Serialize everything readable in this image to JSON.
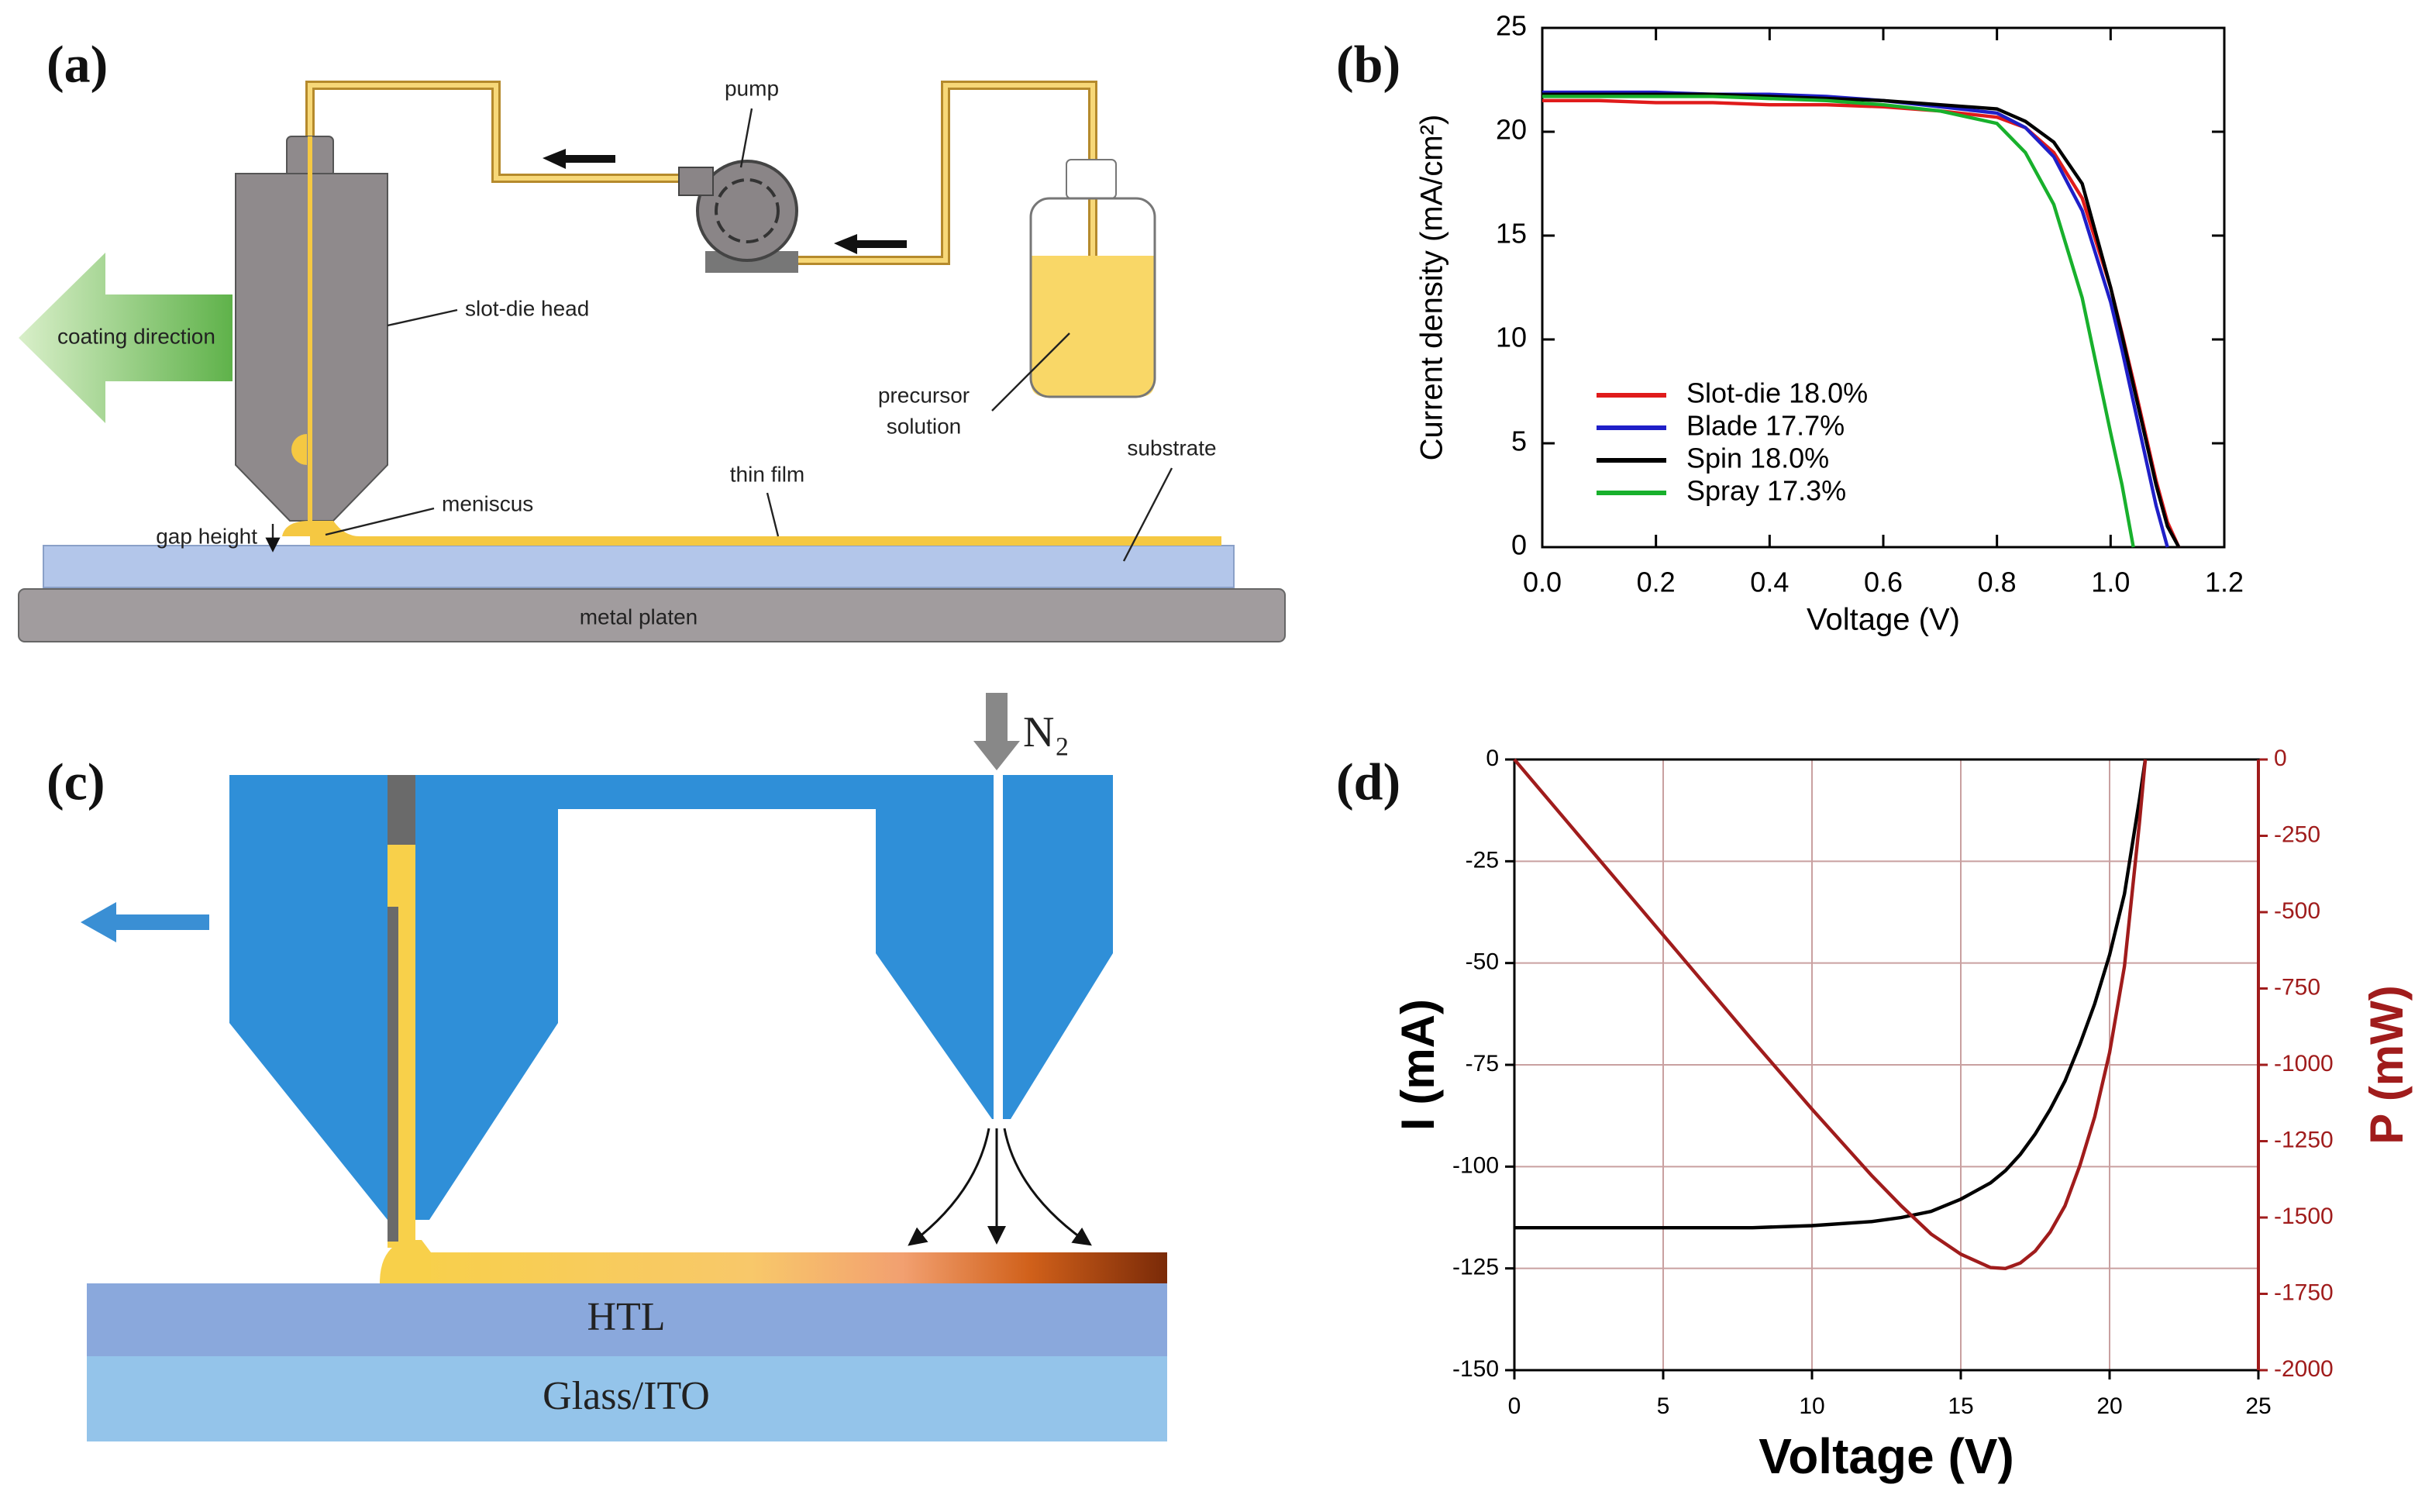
{
  "panels": {
    "a": "(a)",
    "b": "(b)",
    "c": "(c)",
    "d": "(d)"
  },
  "diagram_a": {
    "pump": "pump",
    "slot_die_head": "slot-die head",
    "coating_direction": "coating direction",
    "precursor_solution": [
      "precursor",
      "solution"
    ],
    "meniscus": "meniscus",
    "thin_film": "thin film",
    "substrate": "substrate",
    "gap_height": "gap height",
    "metal_platen": "metal platen"
  },
  "diagram_c": {
    "gas": "N₂",
    "htl": "HTL",
    "glass": "Glass/ITO"
  },
  "chart_data": [
    {
      "type": "line",
      "xlabel": "Voltage (V)",
      "ylabel": "Current density (mA/cm²)",
      "x": [
        0,
        0.1,
        0.2,
        0.3,
        0.4,
        0.5,
        0.6,
        0.7,
        0.8,
        0.85,
        0.9,
        0.95,
        1.0,
        1.02,
        1.04,
        1.06,
        1.08,
        1.1,
        1.12
      ],
      "series": [
        {
          "name": "Slot-die 18.0%",
          "color": "#e01b1b",
          "values": [
            21.5,
            21.5,
            21.4,
            21.4,
            21.3,
            21.3,
            21.2,
            21.0,
            20.7,
            20.2,
            19.0,
            16.8,
            12.5,
            10.3,
            8.0,
            5.6,
            3.2,
            1.2,
            0
          ]
        },
        {
          "name": "Blade 17.7%",
          "color": "#1f1fc8",
          "values": [
            21.9,
            21.9,
            21.9,
            21.8,
            21.8,
            21.7,
            21.5,
            21.2,
            20.9,
            20.2,
            18.8,
            16.2,
            11.8,
            9.5,
            7.0,
            4.5,
            2.0,
            0,
            null
          ]
        },
        {
          "name": "Spin 18.0%",
          "color": "#000000",
          "values": [
            21.8,
            21.8,
            21.8,
            21.8,
            21.7,
            21.6,
            21.5,
            21.3,
            21.1,
            20.5,
            19.5,
            17.5,
            12.5,
            10.2,
            7.8,
            5.4,
            3.0,
            1.0,
            0
          ]
        },
        {
          "name": "Spray 17.3%",
          "color": "#18b02c",
          "values": [
            21.7,
            21.7,
            21.7,
            21.7,
            21.6,
            21.5,
            21.3,
            21.0,
            20.4,
            19.0,
            16.5,
            12.0,
            5.5,
            3.0,
            0,
            null,
            null,
            null,
            null
          ]
        }
      ],
      "xlim": [
        0,
        1.2
      ],
      "xticks": [
        {
          "value": 0,
          "label": "0.0"
        },
        0.2,
        0.4,
        0.6,
        0.8,
        {
          "value": 1,
          "label": "1.0"
        },
        1.2
      ],
      "ylim": [
        0,
        25
      ],
      "yticks": [
        0,
        5,
        10,
        15,
        20,
        25
      ],
      "grid": false,
      "legend": "lower left"
    },
    {
      "type": "line",
      "xlabel": "Voltage (V)",
      "ylabel": "I (mA)",
      "y2label": "P (mW)",
      "x": [
        0,
        2,
        4,
        6,
        8,
        10,
        12,
        13,
        14,
        15,
        16,
        16.5,
        17,
        17.5,
        18,
        18.5,
        19,
        19.5,
        20,
        20.5,
        21,
        21.2
      ],
      "series": [
        {
          "color": "#000000",
          "values": [
            -115,
            -115,
            -115,
            -115,
            -115,
            -114.5,
            -113.5,
            -112.5,
            -111,
            -108,
            -104,
            -101,
            -97,
            -92,
            -86,
            -79,
            -70,
            -60,
            -48,
            -33,
            -10,
            0
          ]
        },
        {
          "color": "#a01c1c",
          "axis": "y2",
          "values": [
            0,
            -230,
            -460,
            -690,
            -920,
            -1145,
            -1362,
            -1462,
            -1554,
            -1620,
            -1664,
            -1667,
            -1649,
            -1610,
            -1548,
            -1462,
            -1330,
            -1170,
            -960,
            -677,
            -210,
            0
          ]
        }
      ],
      "xlim": [
        0,
        25
      ],
      "xticks": [
        0,
        5,
        10,
        15,
        20,
        25
      ],
      "ylim": [
        -150,
        0
      ],
      "yticks": [
        0,
        -25,
        -50,
        -75,
        -100,
        -125,
        -150
      ],
      "y2lim": [
        -2000,
        0
      ],
      "y2ticks": [
        0,
        -250,
        -500,
        -750,
        -1000,
        -1250,
        -1500,
        -1750,
        -2000
      ],
      "grid": true
    }
  ]
}
